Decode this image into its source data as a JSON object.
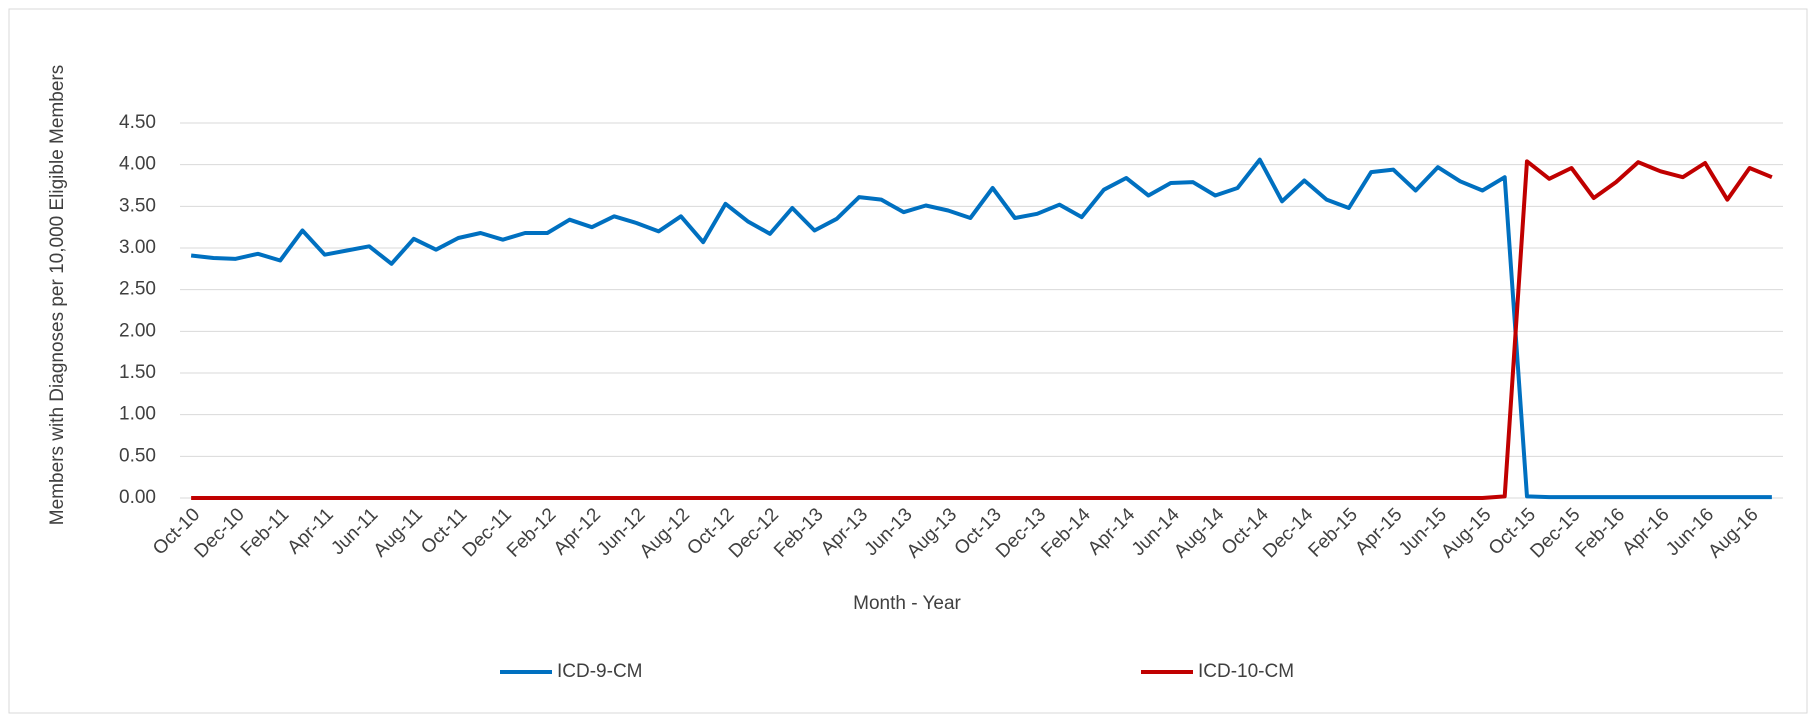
{
  "chart_data": {
    "type": "line",
    "y_label": "Members with Diagnoses per 10,000 Eligible Members",
    "x_label": "Month - Year",
    "categories": [
      "Oct-10",
      null,
      "Dec-10",
      null,
      "Feb-11",
      null,
      "Apr-11",
      null,
      "Jun-11",
      null,
      "Aug-11",
      null,
      "Oct-11",
      null,
      "Dec-11",
      null,
      "Feb-12",
      null,
      "Apr-12",
      null,
      "Jun-12",
      null,
      "Aug-12",
      null,
      "Oct-12",
      null,
      "Dec-12",
      null,
      "Feb-13",
      null,
      "Apr-13",
      null,
      "Jun-13",
      null,
      "Aug-13",
      null,
      "Oct-13",
      null,
      "Dec-13",
      null,
      "Feb-14",
      null,
      "Apr-14",
      null,
      "Jun-14",
      null,
      "Aug-14",
      null,
      "Oct-14",
      null,
      "Dec-14",
      null,
      "Feb-15",
      null,
      "Apr-15",
      null,
      "Jun-15",
      null,
      "Aug-15",
      null,
      "Oct-15",
      null,
      "Dec-15",
      null,
      "Feb-16",
      null,
      "Apr-16",
      null,
      "Jun-16",
      null,
      "Aug-16",
      null
    ],
    "series": [
      {
        "name": "ICD-9-CM",
        "color": "#0070c0",
        "values": [
          2.91,
          2.88,
          2.87,
          2.93,
          2.85,
          3.21,
          2.92,
          2.97,
          3.02,
          2.81,
          3.11,
          2.98,
          3.12,
          3.18,
          3.1,
          3.18,
          3.18,
          3.34,
          3.25,
          3.38,
          3.3,
          3.2,
          3.38,
          3.07,
          3.53,
          3.32,
          3.17,
          3.48,
          3.21,
          3.35,
          3.61,
          3.58,
          3.43,
          3.51,
          3.45,
          3.36,
          3.72,
          3.36,
          3.41,
          3.52,
          3.37,
          3.7,
          3.84,
          3.63,
          3.78,
          3.79,
          3.63,
          3.72,
          4.06,
          3.56,
          3.81,
          3.58,
          3.48,
          3.91,
          3.94,
          3.69,
          3.97,
          3.8,
          3.69,
          3.85,
          0.02,
          0.01,
          0.01,
          0.01,
          0.01,
          0.01,
          0.01,
          0.01,
          0.01,
          0.01,
          0.01,
          0.01
        ]
      },
      {
        "name": "ICD-10-CM",
        "color": "#c00000",
        "values": [
          0,
          0,
          0,
          0,
          0,
          0,
          0,
          0,
          0,
          0,
          0,
          0,
          0,
          0,
          0,
          0,
          0,
          0,
          0,
          0,
          0,
          0,
          0,
          0,
          0,
          0,
          0,
          0,
          0,
          0,
          0,
          0,
          0,
          0,
          0,
          0,
          0,
          0,
          0,
          0,
          0,
          0,
          0,
          0,
          0,
          0,
          0,
          0,
          0,
          0,
          0,
          0,
          0,
          0,
          0,
          0,
          0,
          0,
          0,
          0.02,
          4.04,
          3.83,
          3.96,
          3.6,
          3.79,
          4.03,
          3.92,
          3.85,
          4.02,
          3.58,
          3.96,
          3.85
        ]
      }
    ],
    "ylim": [
      0,
      4.5
    ],
    "yticks": [
      {
        "value": 0,
        "label": "0.00"
      },
      {
        "value": 0.5,
        "label": "0.50"
      },
      {
        "value": 1,
        "label": "1.00"
      },
      {
        "value": 1.5,
        "label": "1.50"
      },
      {
        "value": 2,
        "label": "2.00"
      },
      {
        "value": 2.5,
        "label": "2.50"
      },
      {
        "value": 3,
        "label": "3.00"
      },
      {
        "value": 3.5,
        "label": "3.50"
      },
      {
        "value": 4,
        "label": "4.00"
      },
      {
        "value": 4.5,
        "label": "4.50"
      }
    ],
    "grid": true,
    "legend": "bottom"
  }
}
